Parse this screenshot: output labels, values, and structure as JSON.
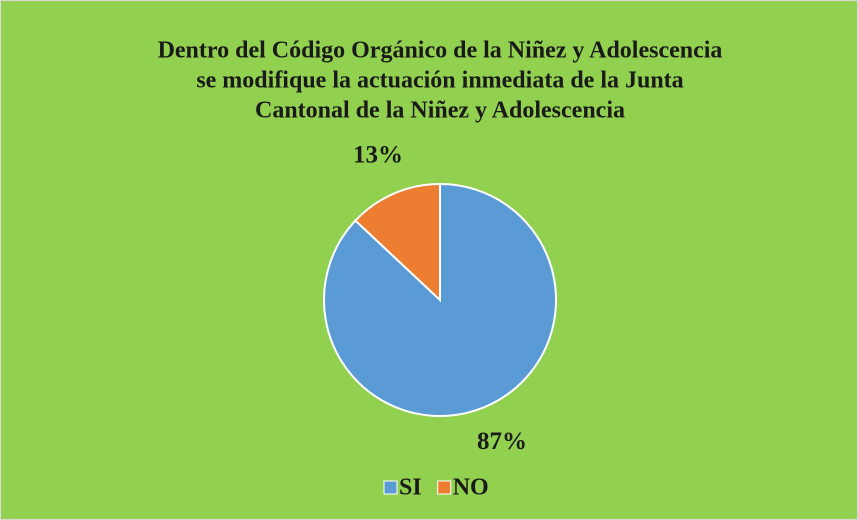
{
  "chart_data": {
    "type": "pie",
    "title": [
      "Dentro del Código Orgánico de la Niñez y Adolescencia",
      "se modifique la actuación inmediata de la Junta",
      "Cantonal de la Niñez y Adolescencia"
    ],
    "categories": [
      "SI",
      "NO"
    ],
    "values": [
      87,
      13
    ],
    "value_labels": [
      "87%",
      "13%"
    ],
    "colors": [
      "#5b9bd5",
      "#ed7d31"
    ],
    "background": "#92d050",
    "legend": "bottom"
  }
}
